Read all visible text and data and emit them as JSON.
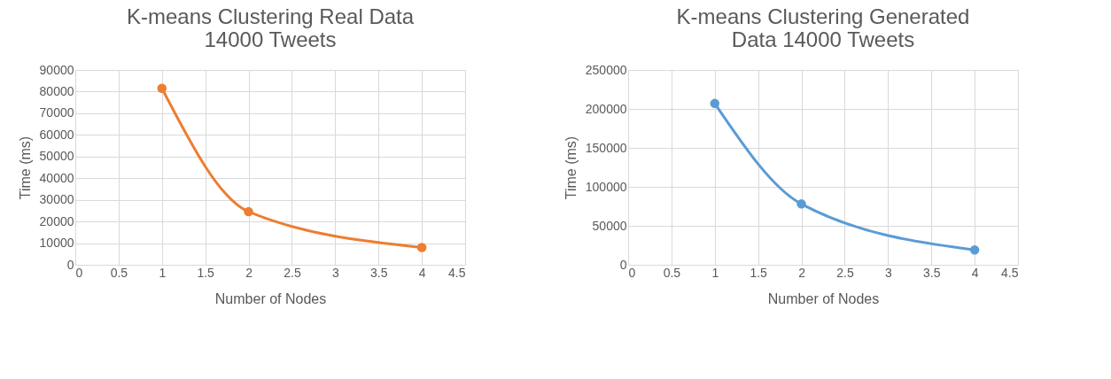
{
  "chart_data": [
    {
      "type": "line",
      "title": "K-means Clustering Real Data 14000 Tweets",
      "xlabel": "Number of Nodes",
      "ylabel": "Time (ms)",
      "x": [
        1,
        2,
        4
      ],
      "series": [
        {
          "color": "#ed7d31",
          "values": [
            81500,
            24500,
            8000
          ]
        }
      ],
      "xlim": [
        0,
        4.5
      ],
      "xticks": [
        0,
        0.5,
        1,
        1.5,
        2,
        2.5,
        3,
        3.5,
        4,
        4.5
      ],
      "ylim": [
        0,
        90000
      ],
      "yticks": [
        0,
        10000,
        20000,
        30000,
        40000,
        50000,
        60000,
        70000,
        80000,
        90000
      ],
      "grid": true,
      "marker": "circle",
      "line_style": "solid"
    },
    {
      "type": "line",
      "title": "K-means Clustering Generated Data 14000 Tweets",
      "xlabel": "Number of Nodes",
      "ylabel": "Time (ms)",
      "x": [
        1,
        2,
        4
      ],
      "series": [
        {
          "color": "#5b9bd5",
          "values": [
            207000,
            78000,
            19000
          ]
        }
      ],
      "xlim": [
        0,
        4.5
      ],
      "xticks": [
        0,
        0.5,
        1,
        1.5,
        2,
        2.5,
        3,
        3.5,
        4,
        4.5
      ],
      "ylim": [
        0,
        250000
      ],
      "yticks": [
        0,
        50000,
        100000,
        150000,
        200000,
        250000
      ],
      "grid": true,
      "marker": "circle",
      "line_style": "solid"
    }
  ]
}
